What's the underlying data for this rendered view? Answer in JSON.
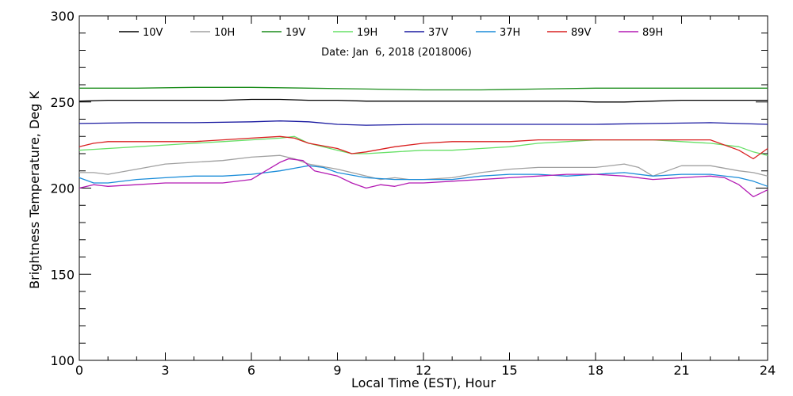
{
  "chart_data": {
    "type": "line",
    "subtitle": "Date: Jan  6, 2018 (2018006)",
    "xlabel": "Local Time (EST), Hour",
    "ylabel": "Brightness Temperature, Deg K",
    "xlim": [
      0,
      24
    ],
    "ylim": [
      100,
      300
    ],
    "xticks": [
      0,
      3,
      6,
      9,
      12,
      15,
      18,
      21,
      24
    ],
    "yticks": [
      100,
      150,
      200,
      250,
      300
    ],
    "grid": false,
    "legend_position": "top",
    "series": [
      {
        "name": "10V",
        "color": "#000000",
        "x": [
          0,
          1,
          2,
          3,
          4,
          5,
          6,
          7,
          8,
          9,
          10,
          11,
          12,
          13,
          14,
          15,
          16,
          17,
          18,
          19,
          20,
          21,
          22,
          23,
          24
        ],
        "y": [
          250.5,
          251,
          251,
          251,
          251,
          251,
          251.5,
          251.5,
          251,
          251,
          250.5,
          250.5,
          250.5,
          250.5,
          250.5,
          250.5,
          250.5,
          250.5,
          250,
          250,
          250.5,
          251,
          251,
          251,
          251
        ]
      },
      {
        "name": "10H",
        "color": "#a0a0a0",
        "x": [
          0,
          0.5,
          1,
          2,
          3,
          4,
          5,
          6,
          7,
          7.5,
          8,
          9,
          9.5,
          10,
          10.5,
          11,
          11.5,
          12,
          13,
          14,
          15,
          16,
          17,
          18,
          19,
          19.5,
          20,
          21,
          22,
          23,
          23.5,
          24
        ],
        "y": [
          209,
          209,
          208,
          211,
          214,
          215,
          216,
          218,
          219,
          217,
          214,
          211,
          209,
          207,
          205,
          206,
          205,
          205,
          206,
          209,
          211,
          212,
          212,
          212,
          214,
          212,
          207,
          213,
          213,
          210,
          209,
          207
        ]
      },
      {
        "name": "19V",
        "color": "#1a8c1a",
        "x": [
          0,
          2,
          4,
          6,
          8,
          10,
          12,
          14,
          16,
          18,
          20,
          22,
          24
        ],
        "y": [
          258,
          258,
          258.5,
          258.5,
          258,
          257.5,
          257,
          257,
          257.5,
          258,
          258,
          258,
          258
        ]
      },
      {
        "name": "19H",
        "color": "#66e066",
        "x": [
          0,
          1,
          2,
          3,
          4,
          5,
          6,
          7,
          7.5,
          8,
          9,
          9.5,
          10,
          11,
          12,
          13,
          14,
          15,
          16,
          17,
          18,
          19,
          20,
          21,
          22,
          23,
          23.5,
          24
        ],
        "y": [
          222,
          223,
          224,
          225,
          226,
          227,
          228,
          229,
          230,
          226,
          222,
          220,
          220,
          221,
          222,
          222,
          223,
          224,
          226,
          227,
          228,
          228,
          228,
          227,
          226,
          224,
          221,
          219
        ]
      },
      {
        "name": "37V",
        "color": "#1a1aa0",
        "x": [
          0,
          2,
          4,
          6,
          7,
          8,
          9,
          10,
          12,
          14,
          16,
          18,
          20,
          22,
          24
        ],
        "y": [
          237.5,
          238,
          238,
          238.5,
          239,
          238.5,
          237,
          236.5,
          237,
          237,
          237,
          237,
          237.5,
          238,
          237
        ]
      },
      {
        "name": "37H",
        "color": "#1a8cd9",
        "x": [
          0,
          0.5,
          1,
          2,
          3,
          4,
          5,
          6,
          7,
          8,
          8.5,
          9,
          10,
          11,
          12,
          13,
          14,
          15,
          16,
          17,
          18,
          19,
          20,
          21,
          22,
          23,
          23.5,
          24
        ],
        "y": [
          206,
          203,
          203,
          205,
          206,
          207,
          207,
          208,
          210,
          213,
          212,
          209,
          206,
          205,
          205,
          205,
          207,
          208,
          208,
          207,
          208,
          209,
          207,
          208,
          208,
          206,
          204,
          201
        ]
      },
      {
        "name": "89V",
        "color": "#d92020",
        "x": [
          0,
          0.5,
          1,
          2,
          3,
          4,
          5,
          6,
          7,
          7.5,
          8,
          9,
          9.5,
          10,
          11,
          12,
          13,
          14,
          15,
          16,
          17,
          18,
          19,
          20,
          21,
          22,
          23,
          23.5,
          24
        ],
        "y": [
          224,
          226,
          227,
          227,
          227,
          227,
          228,
          229,
          230,
          229,
          226,
          223,
          220,
          221,
          224,
          226,
          227,
          227,
          227,
          228,
          228,
          228,
          228,
          228,
          228,
          228,
          222,
          217,
          223
        ]
      },
      {
        "name": "89H",
        "color": "#b31ab3",
        "x": [
          0,
          0.5,
          1,
          2,
          3,
          4,
          5,
          6,
          6.5,
          7,
          7.3,
          7.8,
          8.2,
          9,
          9.5,
          10,
          10.5,
          11,
          11.5,
          12,
          13,
          14,
          15,
          16,
          17,
          18,
          19,
          20,
          21,
          22,
          22.5,
          23,
          23.5,
          24
        ],
        "y": [
          200,
          202,
          201,
          202,
          203,
          203,
          203,
          205,
          210,
          215,
          217,
          216,
          210,
          207,
          203,
          200,
          202,
          201,
          203,
          203,
          204,
          205,
          206,
          207,
          208,
          208,
          207,
          205,
          206,
          207,
          206,
          202,
          195,
          199
        ]
      }
    ]
  }
}
